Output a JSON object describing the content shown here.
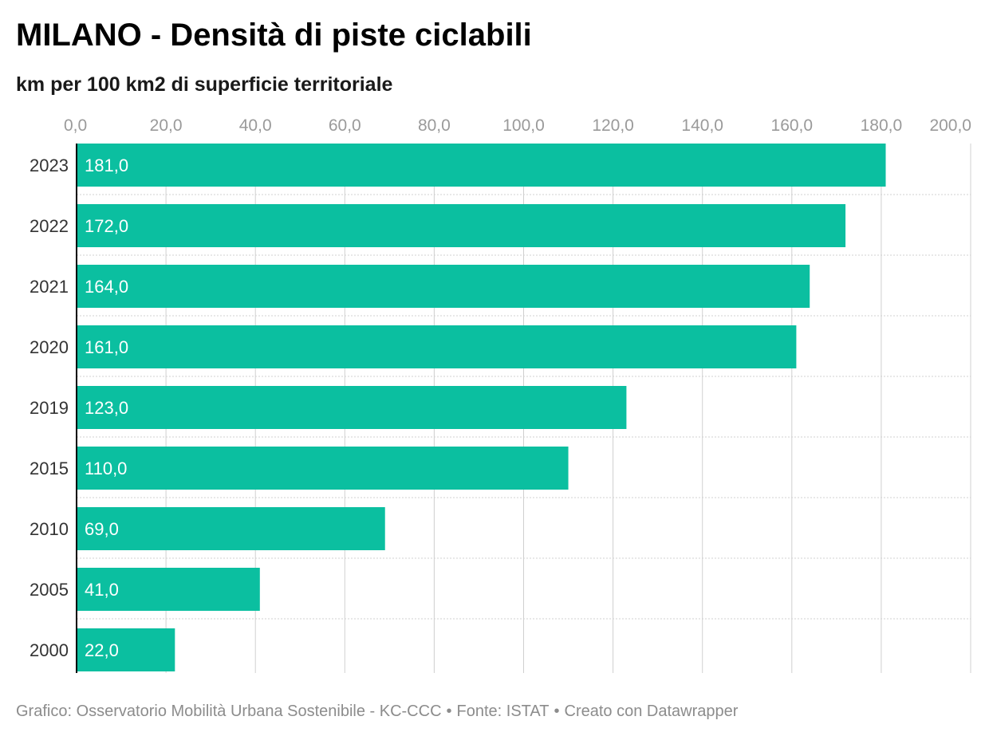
{
  "title": "MILANO - Densità di piste ciclabili",
  "subtitle": "km per 100 km2 di superficie territoriale",
  "colors": {
    "bar": "#0bbfa0",
    "bar_label": "#ffffff",
    "tick": "#9a9a9a",
    "category": "#333333",
    "grid": "#d0d0d0",
    "axis": "#000000"
  },
  "chart_data": {
    "type": "bar",
    "orientation": "horizontal",
    "categories": [
      "2023",
      "2022",
      "2021",
      "2020",
      "2019",
      "2015",
      "2010",
      "2005",
      "2000"
    ],
    "values": [
      181.0,
      172.0,
      164.0,
      161.0,
      123.0,
      110.0,
      69.0,
      41.0,
      22.0
    ],
    "value_labels": [
      "181,0",
      "172,0",
      "164,0",
      "161,0",
      "123,0",
      "110,0",
      "69,0",
      "41,0",
      "22,0"
    ],
    "xlim": [
      0,
      200
    ],
    "xticks": [
      0,
      20,
      40,
      60,
      80,
      100,
      120,
      140,
      160,
      180,
      200
    ],
    "xtick_labels": [
      "0,0",
      "20,0",
      "40,0",
      "60,0",
      "80,0",
      "100,0",
      "120,0",
      "140,0",
      "160,0",
      "180,0",
      "200,0"
    ],
    "x_axis_position": "top",
    "grid": true,
    "legend": "none"
  },
  "footer": {
    "credit": "Grafico: Osservatorio Mobilità Urbana Sostenibile - KC-CCC",
    "source": "Fonte: ISTAT",
    "tool": "Creato con Datawrapper",
    "separator": "•"
  }
}
